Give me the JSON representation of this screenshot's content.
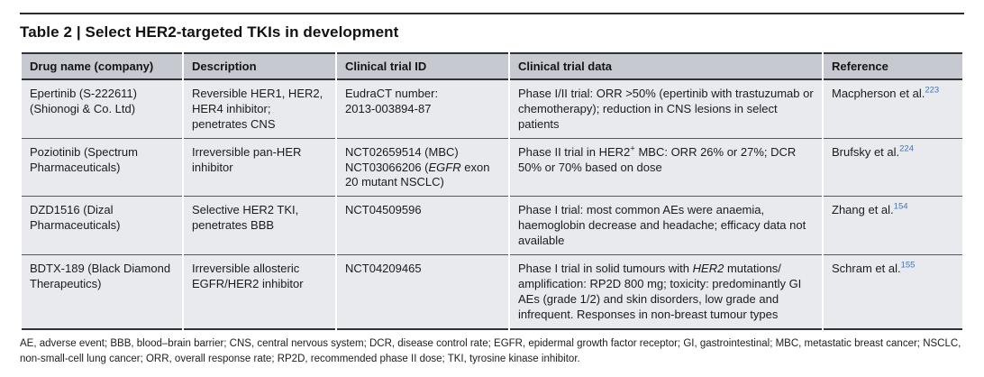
{
  "title": "Table 2 | Select HER2-targeted TKIs in development",
  "colors": {
    "header_background": "#c7c9d1",
    "row_background": "#e9eaee",
    "rule_dark": "#303238",
    "citation_link_blue": "#4472b8",
    "text": "#1b1b1d"
  },
  "table": {
    "columns": [
      "Drug name (company)",
      "Description",
      "Clinical trial ID",
      "Clinical trial data",
      "Reference"
    ],
    "rows": [
      {
        "drug": [
          {
            "text": "Epertinib (S-222611) (Shionogi & Co. Ltd)"
          }
        ],
        "description": [
          {
            "text": "Reversible HER1, HER2, HER4 inhibitor; penetrates CNS"
          }
        ],
        "trial_id": [
          {
            "text": "EudraCT number:\n2013-003894-87"
          }
        ],
        "trial_data": [
          {
            "text": "Phase I/II trial: ORR >50% (epertinib with trastuzumab or chemotherapy); reduction in CNS lesions in select patients"
          }
        ],
        "reference": "Macpherson et al.",
        "reference_sup": "223"
      },
      {
        "drug": [
          {
            "text": "Poziotinib (Spectrum Pharmaceuticals)"
          }
        ],
        "description": [
          {
            "text": "Irreversible pan-HER inhibitor"
          }
        ],
        "trial_id": [
          {
            "text": "NCT02659514 (MBC)\nNCT03066206 ("
          },
          {
            "text": "EGFR",
            "style": "italic"
          },
          {
            "text": " exon 20 mutant NSCLC)"
          }
        ],
        "trial_data": [
          {
            "text": "Phase II trial in HER2"
          },
          {
            "text": "+",
            "style": "sup"
          },
          {
            "text": " MBC: ORR 26% or 27%; DCR 50% or 70% based on dose"
          }
        ],
        "reference": "Brufsky et al.",
        "reference_sup": "224"
      },
      {
        "drug": [
          {
            "text": "DZD1516 (Dizal Pharmaceuticals)"
          }
        ],
        "description": [
          {
            "text": "Selective HER2 TKI, penetrates BBB"
          }
        ],
        "trial_id": [
          {
            "text": "NCT04509596"
          }
        ],
        "trial_data": [
          {
            "text": "Phase I trial: most common AEs were anaemia, haemoglobin decrease and headache; efficacy data not available"
          }
        ],
        "reference": "Zhang et al.",
        "reference_sup": "154"
      },
      {
        "drug": [
          {
            "text": "BDTX-189 (Black Diamond Therapeutics)"
          }
        ],
        "description": [
          {
            "text": "Irreversible allosteric EGFR/HER2 inhibitor"
          }
        ],
        "trial_id": [
          {
            "text": "NCT04209465"
          }
        ],
        "trial_data": [
          {
            "text": "Phase I trial in solid tumours with "
          },
          {
            "text": "HER2",
            "style": "italic"
          },
          {
            "text": " mutations/\namplification: RP2D 800 mg; toxicity: predominantly GI AEs (grade 1/2) and skin disorders, low grade and infrequent. Responses in non-breast tumour types"
          }
        ],
        "reference": "Schram et al.",
        "reference_sup": "155"
      }
    ]
  },
  "footnote": "AE, adverse event; BBB, blood–brain barrier; CNS, central nervous system; DCR, disease control rate; EGFR, epidermal growth factor receptor; GI, gastrointestinal; MBC, metastatic breast cancer; NSCLC, non-small-cell lung cancer; ORR, overall response rate; RP2D, recommended phase II dose; TKI, tyrosine kinase inhibitor."
}
